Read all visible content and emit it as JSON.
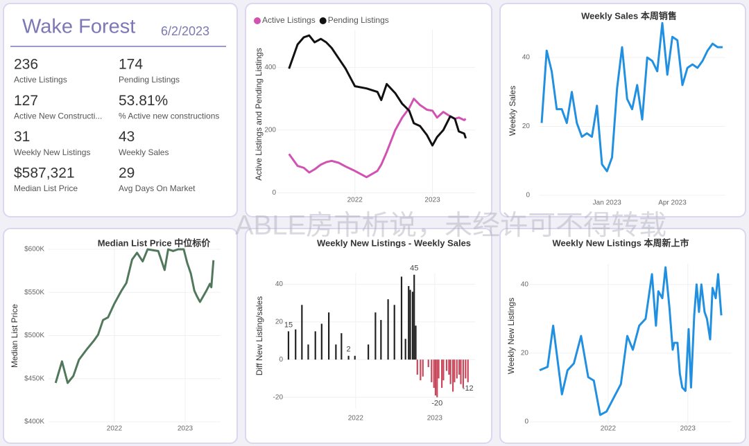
{
  "header": {
    "title": "Wake Forest",
    "date": "6/2/2023"
  },
  "kpis": [
    {
      "value": "236",
      "label": "Active Listings"
    },
    {
      "value": "174",
      "label": "Pending Listings"
    },
    {
      "value": "127",
      "label": "Active New Constructi..."
    },
    {
      "value": "53.81%",
      "label": "% Active new constructions"
    },
    {
      "value": "31",
      "label": "Weekly New Listings"
    },
    {
      "value": "43",
      "label": "Weekly Sales"
    },
    {
      "value": "$587,321",
      "label": "Median List Price"
    },
    {
      "value": "29",
      "label": "Avg Days On Market"
    }
  ],
  "watermark": "ABLE房市析说，未经许可不得转载",
  "chart_data": [
    {
      "type": "line",
      "ylabel": "Active Listings and Pending Listings",
      "legend": "top-left",
      "grid": true,
      "x": [
        2021.15,
        2021.26,
        2021.34,
        2021.41,
        2021.48,
        2021.56,
        2021.63,
        2021.7,
        2021.79,
        2021.88,
        2022.0,
        2022.15,
        2022.29,
        2022.34,
        2022.41,
        2022.52,
        2022.61,
        2022.7,
        2022.76,
        2022.84,
        2022.93,
        2023.0,
        2023.06,
        2023.14,
        2023.23,
        2023.29,
        2023.34,
        2023.41,
        2023.43
      ],
      "series": [
        {
          "name": "Active Listings",
          "color": "#d152b1",
          "values": [
            124,
            86,
            80,
            65,
            75,
            90,
            98,
            102,
            96,
            84,
            70,
            50,
            70,
            90,
            130,
            200,
            240,
            270,
            300,
            280,
            265,
            262,
            240,
            258,
            244,
            236,
            240,
            232,
            236
          ]
        },
        {
          "name": "Pending Listings",
          "color": "#111111",
          "values": [
            396,
            473,
            496,
            502,
            480,
            491,
            480,
            462,
            429,
            396,
            340,
            333,
            322,
            296,
            347,
            318,
            284,
            262,
            222,
            213,
            184,
            151,
            178,
            200,
            244,
            236,
            196,
            189,
            174
          ]
        }
      ],
      "xlim": [
        2021.0,
        2023.55
      ],
      "xticks": [
        2022,
        2023
      ],
      "ylim": [
        -10,
        520
      ],
      "yticks": [
        0,
        200,
        400
      ]
    },
    {
      "type": "line",
      "title": "Weekly Sales 本周销售",
      "ylabel": "Weekly Sales",
      "grid": true,
      "color": "#2290e0",
      "categories": [
        null,
        null,
        null,
        null,
        null,
        null,
        null,
        null,
        null,
        null,
        null,
        null,
        null,
        "Jan 2023",
        null,
        null,
        null,
        null,
        null,
        null,
        null,
        null,
        null,
        null,
        null,
        null,
        "Apr 2023",
        null,
        null,
        null,
        null,
        null,
        null,
        null,
        null,
        null,
        null
      ],
      "values": [
        21,
        42,
        36,
        25,
        25,
        21,
        30,
        21,
        17,
        18,
        17,
        26,
        9,
        7,
        11,
        31,
        43,
        28,
        25,
        32,
        22,
        40,
        39,
        36,
        50,
        35,
        46,
        45,
        32,
        37,
        38,
        37,
        39,
        42,
        44,
        43,
        43
      ],
      "ylim": [
        -2,
        51
      ],
      "yticks": [
        0,
        20,
        40
      ]
    },
    {
      "type": "line",
      "title": "Median List Price  中位标价",
      "ylabel": "Median List Price",
      "grid": true,
      "color": "#52785c",
      "x": [
        2021.17,
        2021.26,
        2021.34,
        2021.42,
        2021.5,
        2021.61,
        2021.71,
        2021.77,
        2021.84,
        2021.91,
        2022.0,
        2022.1,
        2022.17,
        2022.25,
        2022.32,
        2022.4,
        2022.47,
        2022.62,
        2022.71,
        2022.76,
        2022.83,
        2022.9,
        2022.98,
        2023.03,
        2023.08,
        2023.13,
        2023.17,
        2023.21,
        2023.3,
        2023.35,
        2023.37,
        2023.4
      ],
      "values": [
        445000,
        470000,
        445000,
        453000,
        472000,
        484000,
        494000,
        501000,
        518000,
        521000,
        537000,
        552000,
        561000,
        588000,
        596000,
        586000,
        600000,
        598000,
        576000,
        600000,
        598000,
        600000,
        600000,
        584000,
        572000,
        552000,
        545000,
        539000,
        552000,
        560000,
        556000,
        587321
      ],
      "xlim": [
        2021.07,
        2023.5
      ],
      "xticks": [
        2022,
        2023
      ],
      "ylim": [
        400000,
        604000
      ],
      "yticks": [
        {
          "value": 400000,
          "label": "$400K"
        },
        {
          "value": 450000,
          "label": "$450K"
        },
        {
          "value": 500000,
          "label": "$500K"
        },
        {
          "value": 550000,
          "label": "$550K"
        },
        {
          "value": 600000,
          "label": "$600K"
        }
      ]
    },
    {
      "type": "bar",
      "title": "Weekly New Listings - Weekly Sales",
      "ylabel": "Diff New Listing/sales",
      "grid": true,
      "positive_color": "#222222",
      "negative_color": "#c9475b",
      "x": [
        2021.15,
        2021.24,
        2021.32,
        2021.4,
        2021.49,
        2021.57,
        2021.66,
        2021.75,
        2021.82,
        2021.91,
        2021.99,
        2022.16,
        2022.25,
        2022.32,
        2022.41,
        2022.49,
        2022.58,
        2022.63,
        2022.67,
        2022.69,
        2022.72,
        2022.74,
        2022.76,
        2022.78,
        2022.82,
        2022.85,
        2022.92,
        2022.96,
        2022.99,
        2023.01,
        2023.03,
        2023.05,
        2023.09,
        2023.11,
        2023.15,
        2023.18,
        2023.2,
        2023.23,
        2023.25,
        2023.28,
        2023.31,
        2023.33,
        2023.36,
        2023.39,
        2023.42
      ],
      "values": [
        15,
        16,
        29,
        8,
        15,
        19,
        25,
        8,
        14,
        2,
        2,
        8,
        25,
        21,
        32,
        29,
        44,
        11,
        39,
        37,
        36,
        45,
        18,
        -8,
        -11,
        -9,
        -4,
        -12,
        -15,
        -19,
        -20,
        -10,
        -15,
        -11,
        -6,
        -8,
        -13,
        -17,
        -12,
        -10,
        -8,
        -13,
        -15,
        -10,
        -12
      ],
      "value_labels": [
        "15",
        null,
        null,
        null,
        null,
        null,
        null,
        null,
        null,
        "2",
        null,
        null,
        null,
        null,
        null,
        null,
        null,
        null,
        null,
        null,
        null,
        "45",
        null,
        null,
        null,
        null,
        null,
        null,
        null,
        null,
        "-20",
        null,
        null,
        null,
        null,
        null,
        null,
        null,
        null,
        null,
        null,
        null,
        null,
        null,
        "-12"
      ],
      "xlim": [
        2021.01,
        2023.51
      ],
      "xticks": [
        2022,
        2023
      ],
      "ylim": [
        -26,
        46
      ],
      "yticks": [
        -20,
        0,
        20,
        40
      ]
    },
    {
      "type": "line",
      "title": "Weekly New Listings  本周新上市",
      "ylabel": "Weekly New Listings",
      "grid": true,
      "color": "#2290e0",
      "x": [
        2021.14,
        2021.24,
        2021.31,
        2021.42,
        2021.49,
        2021.57,
        2021.66,
        2021.75,
        2021.82,
        2021.9,
        2021.98,
        2022.07,
        2022.16,
        2022.24,
        2022.31,
        2022.39,
        2022.47,
        2022.55,
        2022.6,
        2022.63,
        2022.68,
        2022.72,
        2022.77,
        2022.81,
        2022.83,
        2022.87,
        2022.9,
        2022.93,
        2022.97,
        2023.01,
        2023.04,
        2023.08,
        2023.11,
        2023.14,
        2023.17,
        2023.21,
        2023.24,
        2023.28,
        2023.31,
        2023.35,
        2023.38,
        2023.42
      ],
      "values": [
        15,
        16,
        28,
        8,
        15,
        17,
        25,
        13,
        12,
        2,
        3,
        7,
        11,
        25,
        21,
        28,
        30,
        43,
        28,
        38,
        36,
        45,
        33,
        21,
        23,
        23,
        14,
        10,
        9,
        27,
        10,
        31,
        40,
        32,
        40,
        32,
        30,
        24,
        39,
        36,
        43,
        31
      ],
      "xlim": [
        2021.0,
        2023.55
      ],
      "xticks": [
        2022,
        2023
      ],
      "ylim": [
        -1,
        46
      ],
      "yticks": [
        0,
        20,
        40
      ]
    }
  ]
}
